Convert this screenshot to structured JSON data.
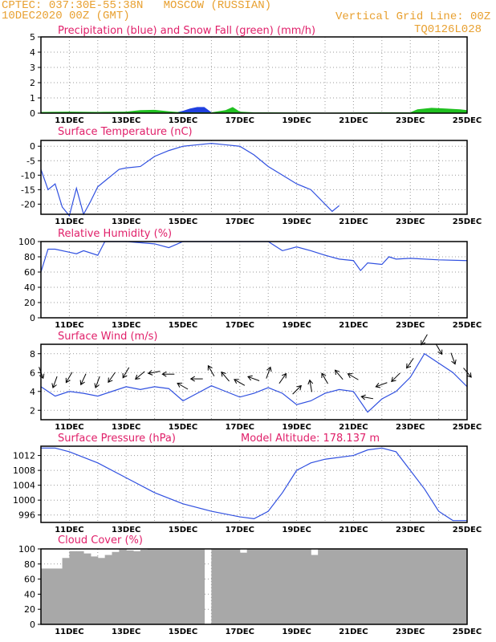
{
  "header": {
    "source": "CPTEC:",
    "location": "037:30E-55:38N   MOSCOW (RUSSIAN)",
    "run": "10DEC2020 00Z (GMT)",
    "grid_note": "Vertical Grid Line: 00Z",
    "model_code": "TQ0126L028"
  },
  "colors": {
    "accent_header": "#e8a030",
    "title": "#e0206a",
    "series_line": "#3050e0",
    "precip_rain": "#2040e0",
    "precip_snow": "#20c020",
    "cloud_fill": "#a8a8a8",
    "wind_arrow": "#000000"
  },
  "chart_data": [
    {
      "type": "area",
      "title": "Precipitation (blue) and Snow Fall (green) (mm/h)",
      "x_axis": {
        "type": "time",
        "start": "2020-12-10T00:00Z",
        "end": "2020-12-25T00:00Z"
      },
      "x_ticks": [
        "11DEC",
        "13DEC",
        "15DEC",
        "17DEC",
        "19DEC",
        "21DEC",
        "23DEC",
        "25DEC"
      ],
      "y_ticks": [
        0,
        1,
        2,
        3,
        4,
        5
      ],
      "ylim": [
        0,
        5
      ],
      "grid": true,
      "series": [
        {
          "name": "Precipitation (blue)",
          "x": [
            "2020-12-14T18:00Z",
            "2020-12-15T00:00Z",
            "2020-12-15T06:00Z",
            "2020-12-15T12:00Z",
            "2020-12-15T18:00Z",
            "2020-12-16T00:00Z"
          ],
          "y": [
            0.05,
            0.15,
            0.3,
            0.4,
            0.4,
            0.05
          ]
        },
        {
          "name": "Snow Fall (green)",
          "x": [
            "2020-12-10T00:00Z",
            "2020-12-11T00:00Z",
            "2020-12-12T00:00Z",
            "2020-12-13T00:00Z",
            "2020-12-13T12:00Z",
            "2020-12-14T00:00Z",
            "2020-12-14T12:00Z",
            "2020-12-15T00:00Z",
            "2020-12-16T00:00Z",
            "2020-12-16T12:00Z",
            "2020-12-16T18:00Z",
            "2020-12-17T00:00Z",
            "2020-12-17T12:00Z",
            "2020-12-18T00:00Z",
            "2020-12-20T00:00Z",
            "2020-12-22T00:00Z",
            "2020-12-23T00:00Z",
            "2020-12-23T06:00Z",
            "2020-12-23T18:00Z",
            "2020-12-24T06:00Z",
            "2020-12-24T18:00Z",
            "2020-12-25T00:00Z"
          ],
          "y": [
            0.08,
            0.1,
            0.08,
            0.1,
            0.2,
            0.22,
            0.12,
            0.05,
            0.05,
            0.2,
            0.4,
            0.1,
            0.05,
            0.05,
            0.03,
            0.05,
            0.05,
            0.25,
            0.35,
            0.3,
            0.25,
            0.2
          ]
        }
      ]
    },
    {
      "type": "line",
      "title": "Surface Temperature (nC)",
      "x_axis": {
        "type": "time",
        "start": "2020-12-10T00:00Z",
        "end": "2020-12-25T00:00Z"
      },
      "x_ticks": [
        "11DEC",
        "13DEC",
        "15DEC",
        "17DEC",
        "19DEC",
        "21DEC",
        "23DEC",
        "25DEC"
      ],
      "y_ticks": [
        0,
        -5,
        -10,
        -15,
        -20
      ],
      "ylim": [
        -23.5,
        2
      ],
      "grid": true,
      "series": [
        {
          "x": [
            "2020-12-10T00:00Z",
            "2020-12-10T06:00Z",
            "2020-12-10T12:00Z",
            "2020-12-10T18:00Z",
            "2020-12-11T00:00Z",
            "2020-12-11T06:00Z",
            "2020-12-11T12:00Z",
            "2020-12-11T18:00Z",
            "2020-12-12T00:00Z",
            "2020-12-12T06:00Z",
            "2020-12-12T12:00Z",
            "2020-12-12T18:00Z",
            "2020-12-13T00:00Z",
            "2020-12-13T12:00Z",
            "2020-12-14T00:00Z",
            "2020-12-14T12:00Z",
            "2020-12-15T00:00Z",
            "2020-12-15T12:00Z",
            "2020-12-16T00:00Z",
            "2020-12-16T12:00Z",
            "2020-12-17T00:00Z",
            "2020-12-17T12:00Z",
            "2020-12-18T00:00Z",
            "2020-12-18T12:00Z",
            "2020-12-19T00:00Z",
            "2020-12-19T12:00Z",
            "2020-12-20T00:00Z",
            "2020-12-20T06:00Z",
            "2020-12-20T12:00Z"
          ],
          "y": [
            -8,
            -15,
            -13,
            -21,
            -24,
            -14.5,
            -23.5,
            -19,
            -14,
            -12,
            -10,
            -8,
            -7.5,
            -7,
            -3.5,
            -1.5,
            0,
            0.5,
            1,
            0.5,
            0,
            -3,
            -7,
            -10,
            -13,
            -15,
            -20,
            -22.5,
            -20.5
          ]
        }
      ]
    },
    {
      "type": "line",
      "title": "Relative Humidity (%)",
      "x_axis": {
        "type": "time",
        "start": "2020-12-10T00:00Z",
        "end": "2020-12-25T00:00Z"
      },
      "x_ticks": [
        "11DEC",
        "13DEC",
        "15DEC",
        "17DEC",
        "19DEC",
        "21DEC",
        "23DEC",
        "25DEC"
      ],
      "y_ticks": [
        0,
        20,
        40,
        60,
        80,
        100
      ],
      "ylim": [
        0,
        100
      ],
      "grid": true,
      "series": [
        {
          "x": [
            "2020-12-10T00:00Z",
            "2020-12-10T06:00Z",
            "2020-12-10T12:00Z",
            "2020-12-11T00:00Z",
            "2020-12-11T06:00Z",
            "2020-12-11T12:00Z",
            "2020-12-12T00:00Z",
            "2020-12-12T06:00Z",
            "2020-12-12T12:00Z",
            "2020-12-12T18:00Z",
            "2020-12-13T00:00Z",
            "2020-12-14T00:00Z",
            "2020-12-14T12:00Z",
            "2020-12-15T00:00Z",
            "2020-12-15T12:00Z",
            "2020-12-16T00:00Z",
            "2020-12-17T00:00Z",
            "2020-12-18T00:00Z",
            "2020-12-18T12:00Z",
            "2020-12-19T00:00Z",
            "2020-12-19T12:00Z",
            "2020-12-20T00:00Z",
            "2020-12-20T12:00Z",
            "2020-12-21T00:00Z",
            "2020-12-21T06:00Z",
            "2020-12-21T12:00Z",
            "2020-12-22T00:00Z",
            "2020-12-22T06:00Z",
            "2020-12-22T12:00Z",
            "2020-12-23T00:00Z",
            "2020-12-24T00:00Z",
            "2020-12-25T00:00Z"
          ],
          "y": [
            60,
            90,
            90,
            86,
            84,
            88,
            82,
            100,
            100,
            100,
            100,
            97,
            92,
            100,
            100,
            100,
            100,
            100,
            88,
            93,
            88,
            82,
            77,
            75,
            62,
            72,
            70,
            80,
            77,
            78,
            76,
            75
          ]
        }
      ]
    },
    {
      "type": "line",
      "title": "Surface Wind (m/s)",
      "x_axis": {
        "type": "time",
        "start": "2020-12-10T00:00Z",
        "end": "2020-12-25T00:00Z"
      },
      "x_ticks": [
        "11DEC",
        "13DEC",
        "15DEC",
        "17DEC",
        "19DEC",
        "21DEC",
        "23DEC",
        "25DEC"
      ],
      "y_ticks": [
        2,
        4,
        6,
        8
      ],
      "ylim": [
        1,
        9
      ],
      "grid": true,
      "series": [
        {
          "x": [
            "2020-12-10T00:00Z",
            "2020-12-10T12:00Z",
            "2020-12-11T00:00Z",
            "2020-12-11T12:00Z",
            "2020-12-12T00:00Z",
            "2020-12-12T12:00Z",
            "2020-12-13T00:00Z",
            "2020-12-13T12:00Z",
            "2020-12-14T00:00Z",
            "2020-12-14T12:00Z",
            "2020-12-15T00:00Z",
            "2020-12-15T12:00Z",
            "2020-12-16T00:00Z",
            "2020-12-16T12:00Z",
            "2020-12-17T00:00Z",
            "2020-12-17T12:00Z",
            "2020-12-18T00:00Z",
            "2020-12-18T12:00Z",
            "2020-12-19T00:00Z",
            "2020-12-19T12:00Z",
            "2020-12-20T00:00Z",
            "2020-12-20T12:00Z",
            "2020-12-21T00:00Z",
            "2020-12-21T12:00Z",
            "2020-12-22T00:00Z",
            "2020-12-22T12:00Z",
            "2020-12-23T00:00Z",
            "2020-12-23T12:00Z",
            "2020-12-24T00:00Z",
            "2020-12-24T12:00Z",
            "2020-12-25T00:00Z"
          ],
          "y": [
            4.5,
            3.5,
            4,
            3.8,
            3.5,
            4,
            4.5,
            4.2,
            4.5,
            4.3,
            3,
            3.8,
            4.6,
            4,
            3.4,
            3.8,
            4.4,
            3.8,
            2.6,
            3,
            3.8,
            4.2,
            4,
            1.8,
            3.2,
            4,
            5.5,
            8,
            7,
            6,
            4.5
          ]
        }
      ],
      "annotations": "Wind direction arrows along the series"
    },
    {
      "type": "line",
      "title": "Surface Pressure (hPa)",
      "subtitle": "Model Altitude: 178.137 m",
      "x_axis": {
        "type": "time",
        "start": "2020-12-10T00:00Z",
        "end": "2020-12-25T00:00Z"
      },
      "x_ticks": [
        "11DEC",
        "13DEC",
        "15DEC",
        "17DEC",
        "19DEC",
        "21DEC",
        "23DEC",
        "25DEC"
      ],
      "y_ticks": [
        996,
        1000,
        1004,
        1008,
        1012
      ],
      "ylim": [
        994,
        1014.5
      ],
      "grid": true,
      "series": [
        {
          "x": [
            "2020-12-10T00:00Z",
            "2020-12-10T12:00Z",
            "2020-12-11T00:00Z",
            "2020-12-12T00:00Z",
            "2020-12-13T00:00Z",
            "2020-12-14T00:00Z",
            "2020-12-15T00:00Z",
            "2020-12-16T00:00Z",
            "2020-12-17T00:00Z",
            "2020-12-17T12:00Z",
            "2020-12-18T00:00Z",
            "2020-12-18T12:00Z",
            "2020-12-19T00:00Z",
            "2020-12-19T12:00Z",
            "2020-12-20T00:00Z",
            "2020-12-21T00:00Z",
            "2020-12-21T12:00Z",
            "2020-12-22T00:00Z",
            "2020-12-22T12:00Z",
            "2020-12-23T00:00Z",
            "2020-12-23T12:00Z",
            "2020-12-24T00:00Z",
            "2020-12-24T12:00Z",
            "2020-12-25T00:00Z"
          ],
          "y": [
            1014,
            1014,
            1013,
            1010,
            1006,
            1002,
            999,
            997,
            995.5,
            995,
            997,
            1002,
            1008,
            1010,
            1011,
            1012,
            1013.5,
            1014,
            1013,
            1008,
            1003,
            997,
            994.5,
            994.5
          ]
        }
      ]
    },
    {
      "type": "bar",
      "title": "Cloud Cover (%)",
      "x_axis": {
        "type": "time",
        "start": "2020-12-10T00:00Z",
        "end": "2020-12-25T00:00Z"
      },
      "x_ticks": [
        "11DEC",
        "13DEC",
        "15DEC",
        "17DEC",
        "19DEC",
        "21DEC",
        "23DEC",
        "25DEC"
      ],
      "y_ticks": [
        0,
        20,
        40,
        60,
        80,
        100
      ],
      "ylim": [
        0,
        100
      ],
      "grid": true,
      "series": [
        {
          "x": [
            "2020-12-10T00:00Z",
            "2020-12-10T06:00Z",
            "2020-12-10T12:00Z",
            "2020-12-10T18:00Z",
            "2020-12-11T00:00Z",
            "2020-12-11T06:00Z",
            "2020-12-11T12:00Z",
            "2020-12-11T18:00Z",
            "2020-12-12T00:00Z",
            "2020-12-12T06:00Z",
            "2020-12-12T12:00Z",
            "2020-12-12T18:00Z",
            "2020-12-13T00:00Z",
            "2020-12-13T06:00Z",
            "2020-12-13T12:00Z",
            "2020-12-13T18:00Z",
            "2020-12-14T00:00Z",
            "2020-12-14T06:00Z",
            "2020-12-14T12:00Z",
            "2020-12-14T18:00Z",
            "2020-12-15T00:00Z",
            "2020-12-15T06:00Z",
            "2020-12-15T12:00Z",
            "2020-12-15T18:00Z",
            "2020-12-16T00:00Z",
            "2020-12-16T06:00Z",
            "2020-12-16T12:00Z",
            "2020-12-16T18:00Z",
            "2020-12-17T00:00Z",
            "2020-12-17T06:00Z",
            "2020-12-17T12:00Z",
            "2020-12-17T18:00Z",
            "2020-12-18T00:00Z",
            "2020-12-18T06:00Z",
            "2020-12-18T12:00Z",
            "2020-12-18T18:00Z",
            "2020-12-19T00:00Z",
            "2020-12-19T06:00Z",
            "2020-12-19T12:00Z",
            "2020-12-19T18:00Z",
            "2020-12-20T00:00Z",
            "2020-12-20T06:00Z",
            "2020-12-20T12:00Z",
            "2020-12-20T18:00Z",
            "2020-12-21T00:00Z",
            "2020-12-21T06:00Z",
            "2020-12-21T12:00Z",
            "2020-12-21T18:00Z",
            "2020-12-22T00:00Z",
            "2020-12-22T06:00Z",
            "2020-12-22T12:00Z",
            "2020-12-22T18:00Z",
            "2020-12-23T00:00Z",
            "2020-12-23T06:00Z",
            "2020-12-23T12:00Z",
            "2020-12-23T18:00Z",
            "2020-12-24T00:00Z",
            "2020-12-24T06:00Z",
            "2020-12-24T12:00Z",
            "2020-12-24T18:00Z"
          ],
          "y": [
            74,
            74,
            74,
            88,
            97,
            97,
            94,
            90,
            88,
            92,
            96,
            99,
            98,
            97,
            99,
            100,
            100,
            100,
            100,
            100,
            100,
            100,
            100,
            0,
            100,
            100,
            100,
            100,
            95,
            100,
            100,
            100,
            100,
            100,
            100,
            100,
            100,
            100,
            92,
            100,
            100,
            100,
            100,
            100,
            100,
            100,
            100,
            100,
            100,
            100,
            100,
            100,
            100,
            100,
            100,
            100,
            100,
            100,
            100,
            100
          ]
        }
      ]
    }
  ]
}
